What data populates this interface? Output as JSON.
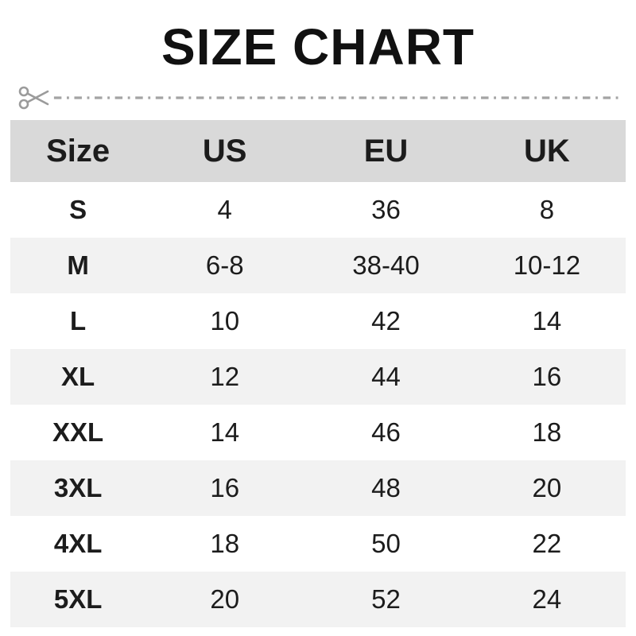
{
  "page": {
    "title": "SIZE CHART"
  },
  "divider": {
    "icon": "scissors-icon",
    "style": "dash-dot cut line"
  },
  "colors": {
    "header_bg": "#d9d9d9",
    "row_alt_bg": "#f2f2f2",
    "text": "#1c1c1c",
    "line": "#a3a3a3",
    "title": "#111111"
  },
  "chart_data": {
    "type": "table",
    "title": "SIZE CHART",
    "columns": [
      "Size",
      "US",
      "EU",
      "UK"
    ],
    "rows": [
      [
        "S",
        "4",
        "36",
        "8"
      ],
      [
        "M",
        "6-8",
        "38-40",
        "10-12"
      ],
      [
        "L",
        "10",
        "42",
        "14"
      ],
      [
        "XL",
        "12",
        "44",
        "16"
      ],
      [
        "XXL",
        "14",
        "46",
        "18"
      ],
      [
        "3XL",
        "16",
        "48",
        "20"
      ],
      [
        "4XL",
        "18",
        "50",
        "22"
      ],
      [
        "5XL",
        "20",
        "52",
        "24"
      ]
    ]
  }
}
